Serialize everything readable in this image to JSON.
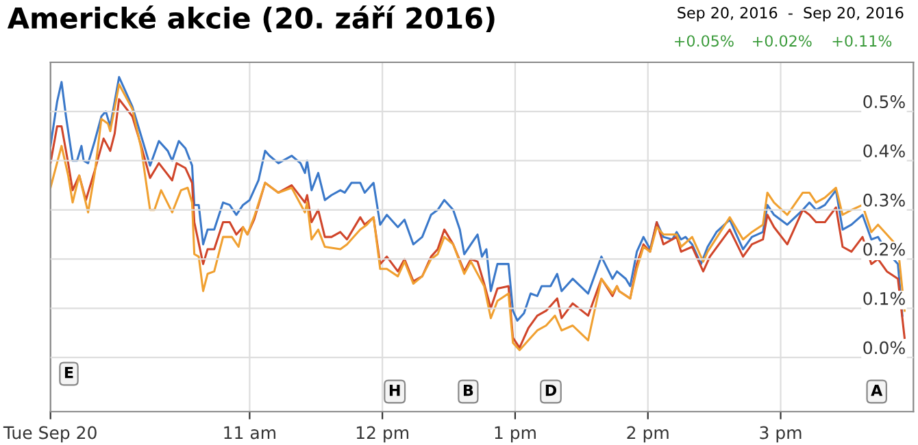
{
  "chart_data": {
    "type": "line",
    "title": "Americké akcie (20. září 2016)",
    "xlim": [
      "2016-09-20T09:30",
      "2016-09-20T16:00"
    ],
    "xticks": [
      {
        "value": "2016-09-20T09:30",
        "label": "Tue Sep 20"
      },
      {
        "value": "2016-09-20T11:00",
        "label": "11 am"
      },
      {
        "value": "2016-09-20T12:00",
        "label": "12 pm"
      },
      {
        "value": "2016-09-20T13:00",
        "label": "1 pm"
      },
      {
        "value": "2016-09-20T14:00",
        "label": "2 pm"
      },
      {
        "value": "2016-09-20T15:00",
        "label": "3 pm"
      }
    ],
    "ylim": [
      -0.11,
      0.6
    ],
    "yticks": [
      {
        "value": 0,
        "label": "0.0%"
      },
      {
        "value": 0.1,
        "label": "0.1%"
      },
      {
        "value": 0.2,
        "label": "0.2%"
      },
      {
        "value": 0.3,
        "label": "0.3%"
      },
      {
        "value": 0.4,
        "label": "0.4%"
      },
      {
        "value": 0.5,
        "label": "0.5%"
      }
    ],
    "grid": true,
    "legend": false,
    "annotations": [
      "Sep 20, 2016  -  Sep 20, 2016",
      "+0.05%",
      "+0.02%",
      "+0.11%",
      "E",
      "H",
      "B",
      "D",
      "A"
    ],
    "series": [
      {
        "color": "#3a78c9",
        "x": [
          "2016-09-20T09:30",
          "2016-09-20T09:33",
          "2016-09-20T09:35",
          "2016-09-20T09:37",
          "2016-09-20T09:40",
          "2016-09-20T09:42",
          "2016-09-20T09:44",
          "2016-09-20T09:45",
          "2016-09-20T09:47",
          "2016-09-20T09:50",
          "2016-09-20T09:53",
          "2016-09-20T09:55",
          "2016-09-20T09:57",
          "2016-09-20T10:01",
          "2016-09-20T10:04",
          "2016-09-20T10:07",
          "2016-09-20T10:11",
          "2016-09-20T10:15",
          "2016-09-20T10:19",
          "2016-09-20T10:23",
          "2016-09-20T10:25",
          "2016-09-20T10:28",
          "2016-09-20T10:31",
          "2016-09-20T10:34",
          "2016-09-20T10:35",
          "2016-09-20T10:37",
          "2016-09-20T10:39",
          "2016-09-20T10:41",
          "2016-09-20T10:44",
          "2016-09-20T10:48",
          "2016-09-20T10:51",
          "2016-09-20T10:54",
          "2016-09-20T10:57",
          "2016-09-20T11:00",
          "2016-09-20T11:04",
          "2016-09-20T11:07",
          "2016-09-20T11:09",
          "2016-09-20T11:13",
          "2016-09-20T11:19",
          "2016-09-20T11:23",
          "2016-09-20T11:25",
          "2016-09-20T11:26",
          "2016-09-20T11:28",
          "2016-09-20T11:31",
          "2016-09-20T11:34",
          "2016-09-20T11:37",
          "2016-09-20T11:41",
          "2016-09-20T11:43",
          "2016-09-20T11:46",
          "2016-09-20T11:50",
          "2016-09-20T11:52",
          "2016-09-20T11:56",
          "2016-09-20T11:59",
          "2016-09-20T12:02",
          "2016-09-20T12:07",
          "2016-09-20T12:10",
          "2016-09-20T12:14",
          "2016-09-20T12:18",
          "2016-09-20T12:22",
          "2016-09-20T12:25",
          "2016-09-20T12:28",
          "2016-09-20T12:32",
          "2016-09-20T12:35",
          "2016-09-20T12:37",
          "2016-09-20T12:40",
          "2016-09-20T12:43",
          "2016-09-20T12:45",
          "2016-09-20T12:47",
          "2016-09-20T12:49",
          "2016-09-20T12:52",
          "2016-09-20T12:57",
          "2016-09-20T12:59",
          "2016-09-20T13:01",
          "2016-09-20T13:04",
          "2016-09-20T13:07",
          "2016-09-20T13:10",
          "2016-09-20T13:12",
          "2016-09-20T13:16",
          "2016-09-20T13:19",
          "2016-09-20T13:21",
          "2016-09-20T13:26",
          "2016-09-20T13:33",
          "2016-09-20T13:39",
          "2016-09-20T13:44",
          "2016-09-20T13:46",
          "2016-09-20T13:50",
          "2016-09-20T13:52",
          "2016-09-20T13:55",
          "2016-09-20T13:58",
          "2016-09-20T14:01",
          "2016-09-20T14:04",
          "2016-09-20T14:07",
          "2016-09-20T14:11",
          "2016-09-20T14:13",
          "2016-09-20T14:15",
          "2016-09-20T14:17",
          "2016-09-20T14:20",
          "2016-09-20T14:24",
          "2016-09-20T14:27",
          "2016-09-20T14:31",
          "2016-09-20T14:37",
          "2016-09-20T14:40",
          "2016-09-20T14:43",
          "2016-09-20T14:47",
          "2016-09-20T14:52",
          "2016-09-20T14:54",
          "2016-09-20T14:57",
          "2016-09-20T15:03",
          "2016-09-20T15:10",
          "2016-09-20T15:13",
          "2016-09-20T15:16",
          "2016-09-20T15:20",
          "2016-09-20T15:25",
          "2016-09-20T15:28",
          "2016-09-20T15:32",
          "2016-09-20T15:37",
          "2016-09-20T15:41",
          "2016-09-20T15:44",
          "2016-09-20T15:48",
          "2016-09-20T15:53",
          "2016-09-20T15:55"
        ],
        "values": [
          0.43,
          0.52,
          0.56,
          0.49,
          0.4,
          0.4,
          0.43,
          0.4,
          0.395,
          0.44,
          0.49,
          0.5,
          0.47,
          0.57,
          0.54,
          0.51,
          0.45,
          0.39,
          0.44,
          0.42,
          0.4,
          0.44,
          0.425,
          0.39,
          0.31,
          0.31,
          0.23,
          0.26,
          0.26,
          0.315,
          0.31,
          0.29,
          0.31,
          0.32,
          0.36,
          0.42,
          0.41,
          0.395,
          0.41,
          0.395,
          0.375,
          0.4,
          0.34,
          0.375,
          0.32,
          0.33,
          0.34,
          0.335,
          0.355,
          0.355,
          0.335,
          0.355,
          0.27,
          0.29,
          0.265,
          0.28,
          0.23,
          0.245,
          0.29,
          0.3,
          0.32,
          0.3,
          0.26,
          0.21,
          0.23,
          0.25,
          0.205,
          0.22,
          0.135,
          0.19,
          0.19,
          0.095,
          0.075,
          0.09,
          0.13,
          0.125,
          0.145,
          0.145,
          0.17,
          0.135,
          0.16,
          0.13,
          0.205,
          0.16,
          0.175,
          0.16,
          0.145,
          0.215,
          0.245,
          0.22,
          0.275,
          0.245,
          0.24,
          0.255,
          0.24,
          0.245,
          0.23,
          0.19,
          0.225,
          0.255,
          0.28,
          0.25,
          0.22,
          0.245,
          0.255,
          0.31,
          0.29,
          0.27,
          0.3,
          0.315,
          0.3,
          0.31,
          0.34,
          0.26,
          0.27,
          0.29,
          0.24,
          0.245,
          0.215,
          0.19,
          0.085
        ]
      },
      {
        "color": "#d0452a",
        "x": [
          "2016-09-20T09:30",
          "2016-09-20T09:33",
          "2016-09-20T09:35",
          "2016-09-20T09:38",
          "2016-09-20T09:40",
          "2016-09-20T09:43",
          "2016-09-20T09:46",
          "2016-09-20T09:50",
          "2016-09-20T09:54",
          "2016-09-20T09:57",
          "2016-09-20T09:59",
          "2016-09-20T10:01",
          "2016-09-20T10:07",
          "2016-09-20T10:11",
          "2016-09-20T10:15",
          "2016-09-20T10:19",
          "2016-09-20T10:25",
          "2016-09-20T10:27",
          "2016-09-20T10:31",
          "2016-09-20T10:34",
          "2016-09-20T10:35",
          "2016-09-20T10:39",
          "2016-09-20T10:41",
          "2016-09-20T10:44",
          "2016-09-20T10:48",
          "2016-09-20T10:51",
          "2016-09-20T10:54",
          "2016-09-20T10:57",
          "2016-09-20T10:59",
          "2016-09-20T11:02",
          "2016-09-20T11:07",
          "2016-09-20T11:13",
          "2016-09-20T11:19",
          "2016-09-20T11:25",
          "2016-09-20T11:26",
          "2016-09-20T11:28",
          "2016-09-20T11:31",
          "2016-09-20T11:34",
          "2016-09-20T11:37",
          "2016-09-20T11:41",
          "2016-09-20T11:44",
          "2016-09-20T11:50",
          "2016-09-20T11:52",
          "2016-09-20T11:56",
          "2016-09-20T11:59",
          "2016-09-20T12:02",
          "2016-09-20T12:07",
          "2016-09-20T12:10",
          "2016-09-20T12:14",
          "2016-09-20T12:18",
          "2016-09-20T12:22",
          "2016-09-20T12:25",
          "2016-09-20T12:28",
          "2016-09-20T12:32",
          "2016-09-20T12:37",
          "2016-09-20T12:40",
          "2016-09-20T12:43",
          "2016-09-20T12:46",
          "2016-09-20T12:49",
          "2016-09-20T12:52",
          "2016-09-20T12:57",
          "2016-09-20T12:59",
          "2016-09-20T13:02",
          "2016-09-20T13:06",
          "2016-09-20T13:10",
          "2016-09-20T13:14",
          "2016-09-20T13:19",
          "2016-09-20T13:21",
          "2016-09-20T13:26",
          "2016-09-20T13:33",
          "2016-09-20T13:39",
          "2016-09-20T13:44",
          "2016-09-20T13:46",
          "2016-09-20T13:47",
          "2016-09-20T13:52",
          "2016-09-20T13:55",
          "2016-09-20T13:58",
          "2016-09-20T14:01",
          "2016-09-20T14:04",
          "2016-09-20T14:07",
          "2016-09-20T14:13",
          "2016-09-20T14:15",
          "2016-09-20T14:20",
          "2016-09-20T14:25",
          "2016-09-20T14:28",
          "2016-09-20T14:37",
          "2016-09-20T14:43",
          "2016-09-20T14:47",
          "2016-09-20T14:52",
          "2016-09-20T14:54",
          "2016-09-20T14:57",
          "2016-09-20T15:03",
          "2016-09-20T15:10",
          "2016-09-20T15:13",
          "2016-09-20T15:16",
          "2016-09-20T15:20",
          "2016-09-20T15:25",
          "2016-09-20T15:28",
          "2016-09-20T15:32",
          "2016-09-20T15:37",
          "2016-09-20T15:41",
          "2016-09-20T15:44",
          "2016-09-20T15:48",
          "2016-09-20T15:53",
          "2016-09-20T15:56"
        ],
        "values": [
          0.395,
          0.47,
          0.47,
          0.395,
          0.34,
          0.37,
          0.32,
          0.38,
          0.445,
          0.42,
          0.455,
          0.525,
          0.49,
          0.43,
          0.365,
          0.395,
          0.36,
          0.395,
          0.385,
          0.355,
          0.275,
          0.19,
          0.22,
          0.22,
          0.275,
          0.275,
          0.25,
          0.265,
          0.25,
          0.28,
          0.355,
          0.335,
          0.35,
          0.315,
          0.33,
          0.275,
          0.3,
          0.245,
          0.245,
          0.255,
          0.24,
          0.285,
          0.27,
          0.285,
          0.19,
          0.205,
          0.175,
          0.2,
          0.155,
          0.165,
          0.205,
          0.22,
          0.26,
          0.23,
          0.175,
          0.2,
          0.195,
          0.15,
          0.1,
          0.14,
          0.145,
          0.04,
          0.02,
          0.06,
          0.085,
          0.095,
          0.12,
          0.08,
          0.11,
          0.085,
          0.16,
          0.125,
          0.145,
          0.135,
          0.12,
          0.19,
          0.23,
          0.215,
          0.275,
          0.23,
          0.245,
          0.215,
          0.225,
          0.175,
          0.205,
          0.26,
          0.205,
          0.23,
          0.24,
          0.29,
          0.265,
          0.23,
          0.3,
          0.29,
          0.275,
          0.275,
          0.305,
          0.225,
          0.215,
          0.245,
          0.19,
          0.2,
          0.175,
          0.16,
          0.04
        ]
      },
      {
        "color": "#f0a030",
        "x": [
          "2016-09-20T09:30",
          "2016-09-20T09:35",
          "2016-09-20T09:38",
          "2016-09-20T09:40",
          "2016-09-20T09:43",
          "2016-09-20T09:47",
          "2016-09-20T09:50",
          "2016-09-20T09:53",
          "2016-09-20T09:56",
          "2016-09-20T09:57",
          "2016-09-20T10:01",
          "2016-09-20T10:07",
          "2016-09-20T10:11",
          "2016-09-20T10:15",
          "2016-09-20T10:17",
          "2016-09-20T10:20",
          "2016-09-20T10:25",
          "2016-09-20T10:29",
          "2016-09-20T10:32",
          "2016-09-20T10:34",
          "2016-09-20T10:35",
          "2016-09-20T10:37",
          "2016-09-20T10:39",
          "2016-09-20T10:41",
          "2016-09-20T10:44",
          "2016-09-20T10:48",
          "2016-09-20T10:52",
          "2016-09-20T10:55",
          "2016-09-20T10:57",
          "2016-09-20T10:59",
          "2016-09-20T11:02",
          "2016-09-20T11:07",
          "2016-09-20T11:13",
          "2016-09-20T11:19",
          "2016-09-20T11:25",
          "2016-09-20T11:26",
          "2016-09-20T11:28",
          "2016-09-20T11:31",
          "2016-09-20T11:34",
          "2016-09-20T11:41",
          "2016-09-20T11:44",
          "2016-09-20T11:50",
          "2016-09-20T11:53",
          "2016-09-20T11:56",
          "2016-09-20T11:59",
          "2016-09-20T12:02",
          "2016-09-20T12:07",
          "2016-09-20T12:10",
          "2016-09-20T12:14",
          "2016-09-20T12:18",
          "2016-09-20T12:22",
          "2016-09-20T12:25",
          "2016-09-20T12:28",
          "2016-09-20T12:32",
          "2016-09-20T12:37",
          "2016-09-20T12:40",
          "2016-09-20T12:46",
          "2016-09-20T12:49",
          "2016-09-20T12:52",
          "2016-09-20T12:57",
          "2016-09-20T12:59",
          "2016-09-20T13:02",
          "2016-09-20T13:06",
          "2016-09-20T13:10",
          "2016-09-20T13:14",
          "2016-09-20T13:18",
          "2016-09-20T13:21",
          "2016-09-20T13:26",
          "2016-09-20T13:33",
          "2016-09-20T13:39",
          "2016-09-20T13:44",
          "2016-09-20T13:46",
          "2016-09-20T13:47",
          "2016-09-20T13:52",
          "2016-09-20T13:55",
          "2016-09-20T13:58",
          "2016-09-20T14:01",
          "2016-09-20T14:04",
          "2016-09-20T14:07",
          "2016-09-20T14:13",
          "2016-09-20T14:15",
          "2016-09-20T14:20",
          "2016-09-20T14:25",
          "2016-09-20T14:27",
          "2016-09-20T14:37",
          "2016-09-20T14:43",
          "2016-09-20T14:47",
          "2016-09-20T14:52",
          "2016-09-20T14:54",
          "2016-09-20T14:57",
          "2016-09-20T15:03",
          "2016-09-20T15:10",
          "2016-09-20T15:13",
          "2016-09-20T15:16",
          "2016-09-20T15:20",
          "2016-09-20T15:25",
          "2016-09-20T15:28",
          "2016-09-20T15:32",
          "2016-09-20T15:37",
          "2016-09-20T15:41",
          "2016-09-20T15:44",
          "2016-09-20T15:48",
          "2016-09-20T15:53",
          "2016-09-20T15:56"
        ],
        "values": [
          0.345,
          0.43,
          0.37,
          0.315,
          0.37,
          0.295,
          0.375,
          0.485,
          0.475,
          0.46,
          0.555,
          0.505,
          0.425,
          0.3,
          0.3,
          0.34,
          0.295,
          0.34,
          0.345,
          0.315,
          0.21,
          0.205,
          0.135,
          0.17,
          0.175,
          0.245,
          0.245,
          0.225,
          0.265,
          0.25,
          0.285,
          0.355,
          0.335,
          0.345,
          0.295,
          0.315,
          0.24,
          0.26,
          0.225,
          0.22,
          0.23,
          0.26,
          0.27,
          0.285,
          0.18,
          0.18,
          0.165,
          0.195,
          0.15,
          0.165,
          0.2,
          0.21,
          0.245,
          0.23,
          0.17,
          0.195,
          0.145,
          0.08,
          0.115,
          0.13,
          0.03,
          0.015,
          0.035,
          0.055,
          0.065,
          0.085,
          0.055,
          0.065,
          0.035,
          0.16,
          0.13,
          0.145,
          0.135,
          0.12,
          0.18,
          0.225,
          0.215,
          0.265,
          0.25,
          0.25,
          0.225,
          0.245,
          0.195,
          0.215,
          0.285,
          0.24,
          0.255,
          0.27,
          0.335,
          0.315,
          0.29,
          0.335,
          0.335,
          0.315,
          0.325,
          0.345,
          0.29,
          0.3,
          0.31,
          0.255,
          0.27,
          0.25,
          0.225,
          0.095
        ]
      }
    ]
  }
}
